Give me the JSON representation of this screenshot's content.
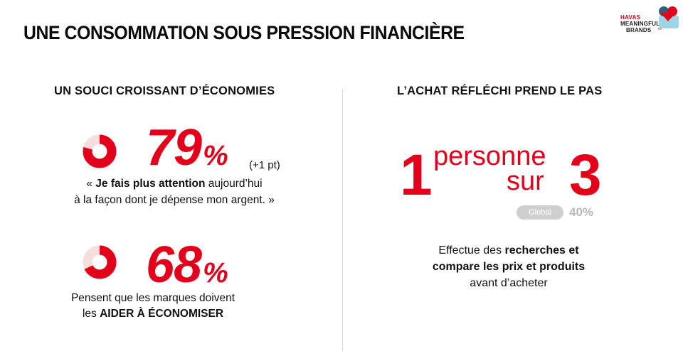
{
  "title": "UNE CONSOMMATION SOUS PRESSION FINANCIÈRE",
  "logo": {
    "line1": "HAVAS",
    "line2": "MEANINGFUL",
    "line3": "BRANDS",
    "tm": "TM"
  },
  "left": {
    "heading": "UN SOUCI CROISSANT D’ÉCONOMIES",
    "stat1": {
      "value": "79",
      "unit": "%",
      "fraction": 0.79,
      "delta": "(+1 pt)",
      "quote_open": "« ",
      "quote_bold": "Je fais plus attention",
      "quote_rest": " aujourd’hui",
      "quote_line2": "à la façon dont je dépense mon argent. »"
    },
    "stat2": {
      "value": "68",
      "unit": "%",
      "fraction": 0.68,
      "line1": "Pensent que les marques doivent",
      "line2_plain": "les ",
      "line2_bold": "AIDER À ÉCONOMISER"
    }
  },
  "right": {
    "heading": "L’ACHAT RÉFLÉCHI PREND LE PAS",
    "num1": "1",
    "word1": "personne",
    "word2": "sur",
    "num2": "3",
    "global_label": "Global",
    "global_value": "40%",
    "desc_plain1": "Effectue des ",
    "desc_bold1": "recherches et",
    "desc_bold2": "compare les prix et produits",
    "desc_line3": "avant d’acheter"
  },
  "colors": {
    "accent": "#e2001a",
    "donut_bg": "#f5dede",
    "gray": "#b8b8b8"
  }
}
